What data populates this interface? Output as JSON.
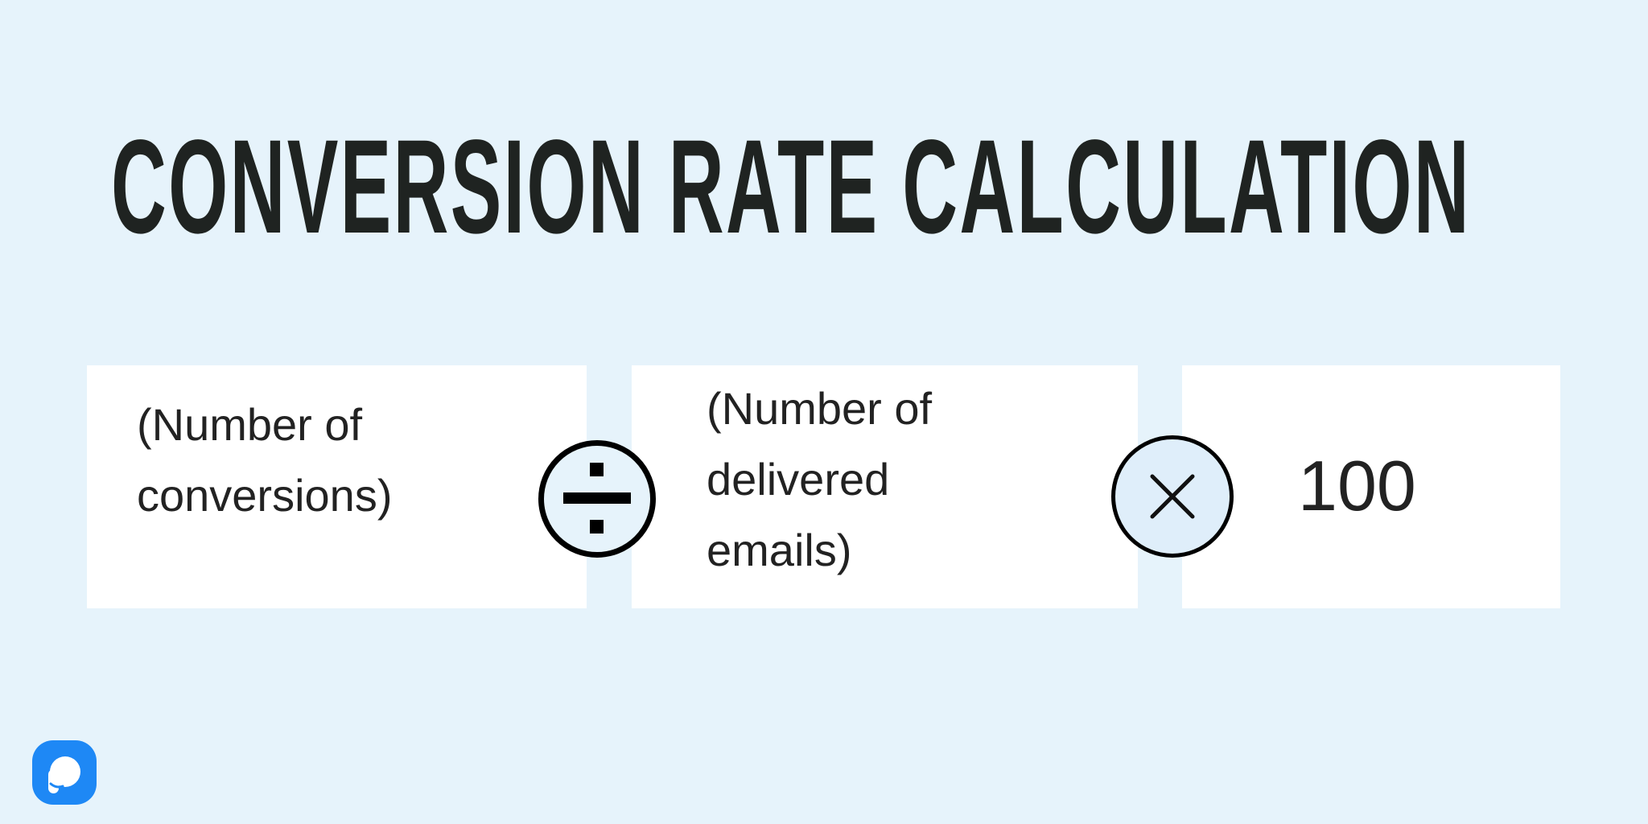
{
  "title": "CONVERSION RATE CALCULATION",
  "formula": {
    "numerator": "(Number of conversions)",
    "divide_icon": "divide-icon",
    "denominator": "(Number of delivered emails)",
    "multiply_icon": "multiply-icon",
    "multiplier": "100"
  },
  "colors": {
    "background": "#e6f3fb",
    "title": "#1f2321",
    "logo": "#1e88f5"
  },
  "logo_icon": "brand-logo-icon"
}
